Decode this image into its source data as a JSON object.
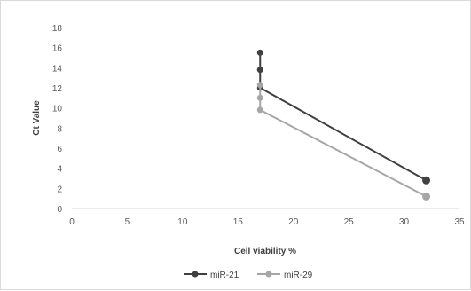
{
  "chart_data": {
    "type": "line",
    "title": "",
    "xlabel": "Cell viability %",
    "ylabel": "Ct Value",
    "xlim": [
      0,
      35
    ],
    "ylim": [
      0,
      18
    ],
    "x_ticks": [
      0,
      5,
      10,
      15,
      20,
      25,
      30,
      35
    ],
    "y_ticks": [
      0,
      2,
      4,
      6,
      8,
      10,
      12,
      14,
      16,
      18
    ],
    "grid": false,
    "legend_position": "bottom",
    "series": [
      {
        "name": "miR-21",
        "color": "#404040",
        "points": [
          {
            "x": 17,
            "y": 15.5
          },
          {
            "x": 17,
            "y": 13.8
          },
          {
            "x": 17,
            "y": 12.0
          },
          {
            "x": 32,
            "y": 2.8
          }
        ]
      },
      {
        "name": "miR-29",
        "color": "#a6a6a6",
        "points": [
          {
            "x": 17,
            "y": 12.3
          },
          {
            "x": 17,
            "y": 11.0
          },
          {
            "x": 17,
            "y": 9.8
          },
          {
            "x": 32,
            "y": 1.2
          }
        ]
      }
    ]
  }
}
